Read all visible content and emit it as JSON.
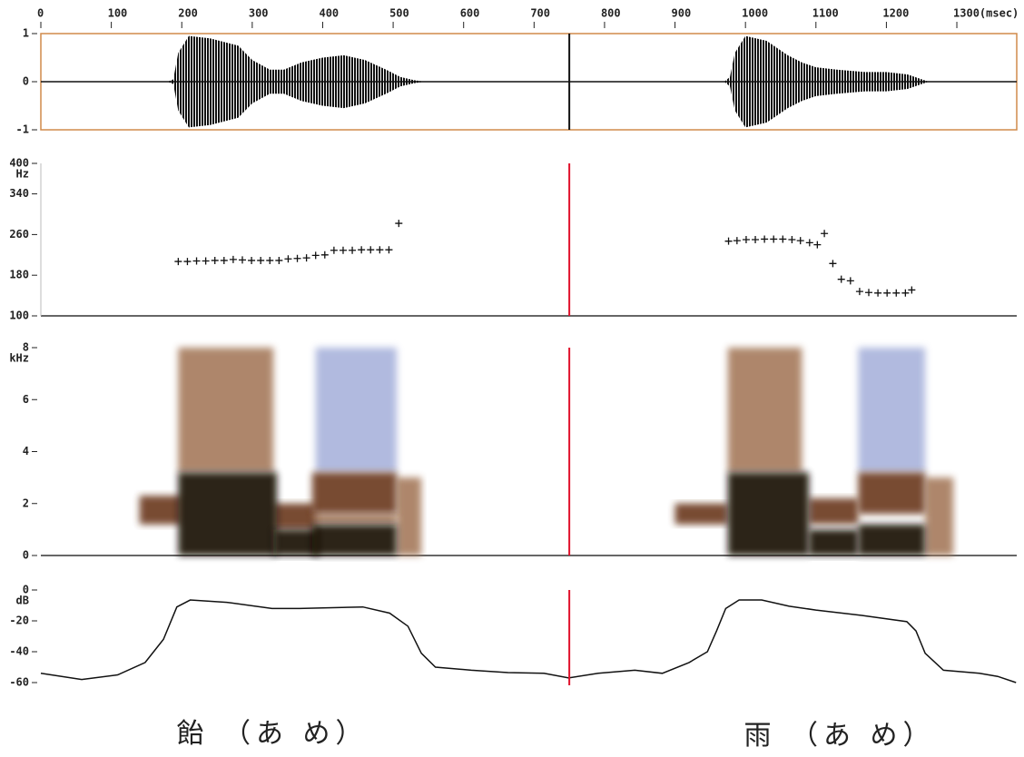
{
  "captions": [
    "飴 （あ め）",
    "雨 （あ め）"
  ],
  "chart_data": [
    {
      "type": "waveform",
      "xlim": [
        0,
        1385
      ],
      "ylim": [
        -1,
        1
      ],
      "yticks": [
        1,
        0,
        -1
      ],
      "xticks": [
        0,
        100,
        200,
        300,
        400,
        500,
        600,
        700,
        800,
        900,
        1000,
        1100,
        1200,
        {
          "value": 1300,
          "label": "1300(msec)"
        }
      ],
      "cursor": 750,
      "cursor_color": "#111111",
      "color": "#111111",
      "frame_color": "#d08a4a",
      "x": [
        0,
        180,
        188,
        195,
        210,
        240,
        280,
        300,
        325,
        345,
        370,
        400,
        430,
        460,
        490,
        510,
        530,
        545,
        970,
        978,
        985,
        1000,
        1030,
        1060,
        1080,
        1100,
        1130,
        1170,
        1200,
        1230,
        1250,
        1260,
        1385
      ],
      "values": [
        0,
        0,
        0.05,
        0.6,
        0.95,
        0.9,
        0.75,
        0.45,
        0.25,
        0.25,
        0.4,
        0.5,
        0.55,
        0.45,
        0.25,
        0.1,
        0.03,
        0,
        0,
        0.1,
        0.6,
        0.95,
        0.85,
        0.55,
        0.4,
        0.3,
        0.25,
        0.2,
        0.2,
        0.15,
        0.05,
        0,
        0
      ]
    },
    {
      "type": "scatter",
      "ylabel": "Hz",
      "xlim": [
        0,
        1385
      ],
      "ylim": [
        100,
        400
      ],
      "yticks": [
        400,
        340,
        260,
        180,
        100
      ],
      "cursor": 750,
      "cursor_color": "#e0102a",
      "color": "#111111",
      "x": [
        195,
        208,
        221,
        234,
        247,
        260,
        273,
        286,
        299,
        312,
        325,
        338,
        351,
        364,
        377,
        390,
        403,
        416,
        429,
        442,
        455,
        468,
        481,
        494,
        508,
        976,
        988,
        1001,
        1014,
        1027,
        1040,
        1053,
        1066,
        1078,
        1091,
        1102,
        1112,
        1124,
        1136,
        1149,
        1162,
        1175,
        1188,
        1201,
        1214,
        1227,
        1236
      ],
      "values": [
        207,
        207,
        208,
        208,
        209,
        209,
        211,
        210,
        209,
        209,
        209,
        209,
        212,
        213,
        214,
        219,
        220,
        229,
        229,
        229,
        230,
        230,
        230,
        230,
        282,
        247,
        248,
        250,
        250,
        251,
        251,
        251,
        250,
        248,
        244,
        240,
        262,
        203,
        172,
        169,
        148,
        146,
        145,
        145,
        145,
        145,
        151
      ]
    },
    {
      "type": "spectrogram",
      "ylabel": "kHz",
      "xlim": [
        0,
        1385
      ],
      "ylim": [
        0,
        8
      ],
      "yticks": [
        0,
        2,
        4,
        6,
        8
      ],
      "cursor": 750,
      "cursor_color": "#e0102a",
      "level_colors": [
        "#a9b3dc",
        "#a67a5c",
        "#6a381c",
        "#160a04"
      ],
      "regions": [
        {
          "x": [
            390,
            505
          ],
          "y": [
            3.2,
            8
          ],
          "level": 0
        },
        {
          "x": [
            1160,
            1255
          ],
          "y": [
            3.2,
            8
          ],
          "level": 0
        },
        {
          "x": [
            195,
            330
          ],
          "y": [
            3.2,
            8
          ],
          "level": 1
        },
        {
          "x": [
            975,
            1080
          ],
          "y": [
            3.2,
            8
          ],
          "level": 1
        },
        {
          "x": [
            505,
            540
          ],
          "y": [
            0,
            3
          ],
          "level": 1
        },
        {
          "x": [
            1255,
            1295
          ],
          "y": [
            0,
            3
          ],
          "level": 1
        },
        {
          "x": [
            385,
            505
          ],
          "y": [
            1.2,
            1.6
          ],
          "level": 1
        },
        {
          "x": [
            140,
            200
          ],
          "y": [
            1.2,
            2.3
          ],
          "level": 2
        },
        {
          "x": [
            900,
            975
          ],
          "y": [
            1.2,
            2
          ],
          "level": 2
        },
        {
          "x": [
            330,
            390
          ],
          "y": [
            1,
            2
          ],
          "level": 2
        },
        {
          "x": [
            385,
            505
          ],
          "y": [
            1.6,
            3.2
          ],
          "level": 2
        },
        {
          "x": [
            1090,
            1160
          ],
          "y": [
            1.2,
            2.2
          ],
          "level": 2
        },
        {
          "x": [
            1160,
            1255
          ],
          "y": [
            1.6,
            3.2
          ],
          "level": 2
        },
        {
          "x": [
            195,
            335
          ],
          "y": [
            0,
            3.2
          ],
          "level": 3
        },
        {
          "x": [
            330,
            395
          ],
          "y": [
            0,
            1
          ],
          "level": 3
        },
        {
          "x": [
            385,
            505
          ],
          "y": [
            0,
            1.2
          ],
          "level": 3
        },
        {
          "x": [
            975,
            1090
          ],
          "y": [
            0,
            3.2
          ],
          "level": 3
        },
        {
          "x": [
            1090,
            1160
          ],
          "y": [
            0,
            1
          ],
          "level": 3
        },
        {
          "x": [
            1160,
            1255
          ],
          "y": [
            0,
            1.2
          ],
          "level": 3
        }
      ]
    },
    {
      "type": "line",
      "ylabel": "dB",
      "xlim": [
        0,
        1385
      ],
      "ylim": [
        -60,
        0
      ],
      "yticks": [
        0,
        -20,
        -40,
        -60
      ],
      "cursor": 750,
      "cursor_color": "#e0102a",
      "color": "#111111",
      "x": [
        0,
        58,
        109,
        148,
        174,
        193,
        212,
        264,
        328,
        367,
        457,
        495,
        521,
        540,
        560,
        611,
        663,
        714,
        749,
        791,
        843,
        882,
        920,
        946,
        959,
        972,
        991,
        1023,
        1062,
        1100,
        1165,
        1229,
        1242,
        1255,
        1281,
        1332,
        1358,
        1384
      ],
      "values": [
        -54,
        -58,
        -55,
        -47,
        -32,
        -11,
        -6.5,
        -8,
        -12,
        -12,
        -11,
        -15,
        -23.5,
        -41,
        -50,
        -52,
        -53.5,
        -54,
        -57,
        -54,
        -52,
        -54,
        -47,
        -40,
        -26.5,
        -12,
        -6.5,
        -6.5,
        -10.5,
        -13,
        -16.5,
        -20.5,
        -26.5,
        -41,
        -52,
        -54,
        -56,
        -60
      ]
    }
  ]
}
